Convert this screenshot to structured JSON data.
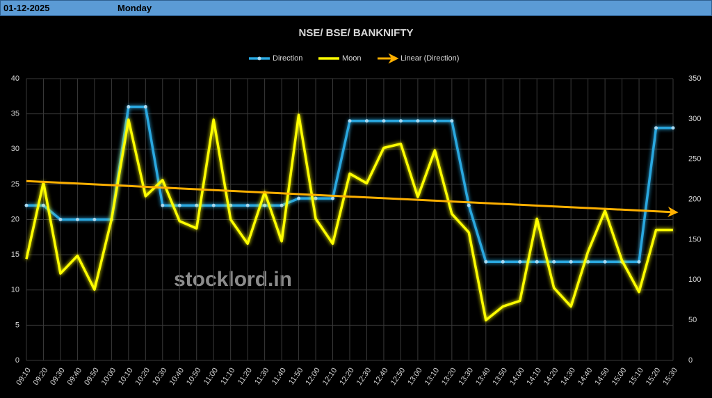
{
  "header": {
    "date": "01-12-2025",
    "day": "Monday"
  },
  "chart_data": {
    "type": "line",
    "title": "NSE/ BSE/ BANKNIFTY",
    "watermark": "stocklord.in",
    "categories": [
      "09:10",
      "09:20",
      "09:30",
      "09:40",
      "09:50",
      "10:00",
      "10:10",
      "10:20",
      "10:30",
      "10:40",
      "10:50",
      "11:00",
      "11:10",
      "11:20",
      "11:30",
      "11:40",
      "11:50",
      "12:00",
      "12:10",
      "12:20",
      "12:30",
      "12:40",
      "12:50",
      "13:00",
      "13:10",
      "13:20",
      "13:30",
      "13:40",
      "13:50",
      "14:00",
      "14:10",
      "14:20",
      "14:30",
      "14:40",
      "14:50",
      "15:00",
      "15:10",
      "15:20",
      "15:30"
    ],
    "series": [
      {
        "name": "Direction",
        "color": "#29a8e0",
        "axis": "y",
        "markers": true,
        "values": [
          22,
          22,
          20,
          20,
          20,
          20,
          36,
          36,
          22,
          22,
          22,
          22,
          22,
          22,
          22,
          22,
          23,
          23,
          23,
          34,
          34,
          34,
          34,
          34,
          34,
          34,
          22,
          14,
          14,
          14,
          14,
          14,
          14,
          14,
          14,
          14,
          14,
          33,
          33
        ]
      },
      {
        "name": "Moon",
        "color": "#ffff00",
        "axis": "y2",
        "markers": false,
        "values": [
          126,
          221,
          108,
          130,
          88,
          175,
          299,
          204,
          224,
          173,
          164,
          299,
          175,
          145,
          209,
          148,
          305,
          176,
          145,
          232,
          220,
          264,
          269,
          203,
          261,
          182,
          159,
          50,
          67,
          74,
          176,
          90,
          67,
          135,
          186,
          124,
          85,
          162,
          162
        ]
      }
    ],
    "trendline": {
      "name": "Linear (Direction)",
      "color": "#ffb000"
    },
    "ylim": [
      0,
      40
    ],
    "yticks": [
      0,
      5,
      10,
      15,
      20,
      25,
      30,
      35,
      40
    ],
    "y2lim": [
      0,
      350
    ],
    "y2ticks": [
      0,
      50,
      100,
      150,
      200,
      250,
      300,
      350
    ],
    "grid": true
  }
}
